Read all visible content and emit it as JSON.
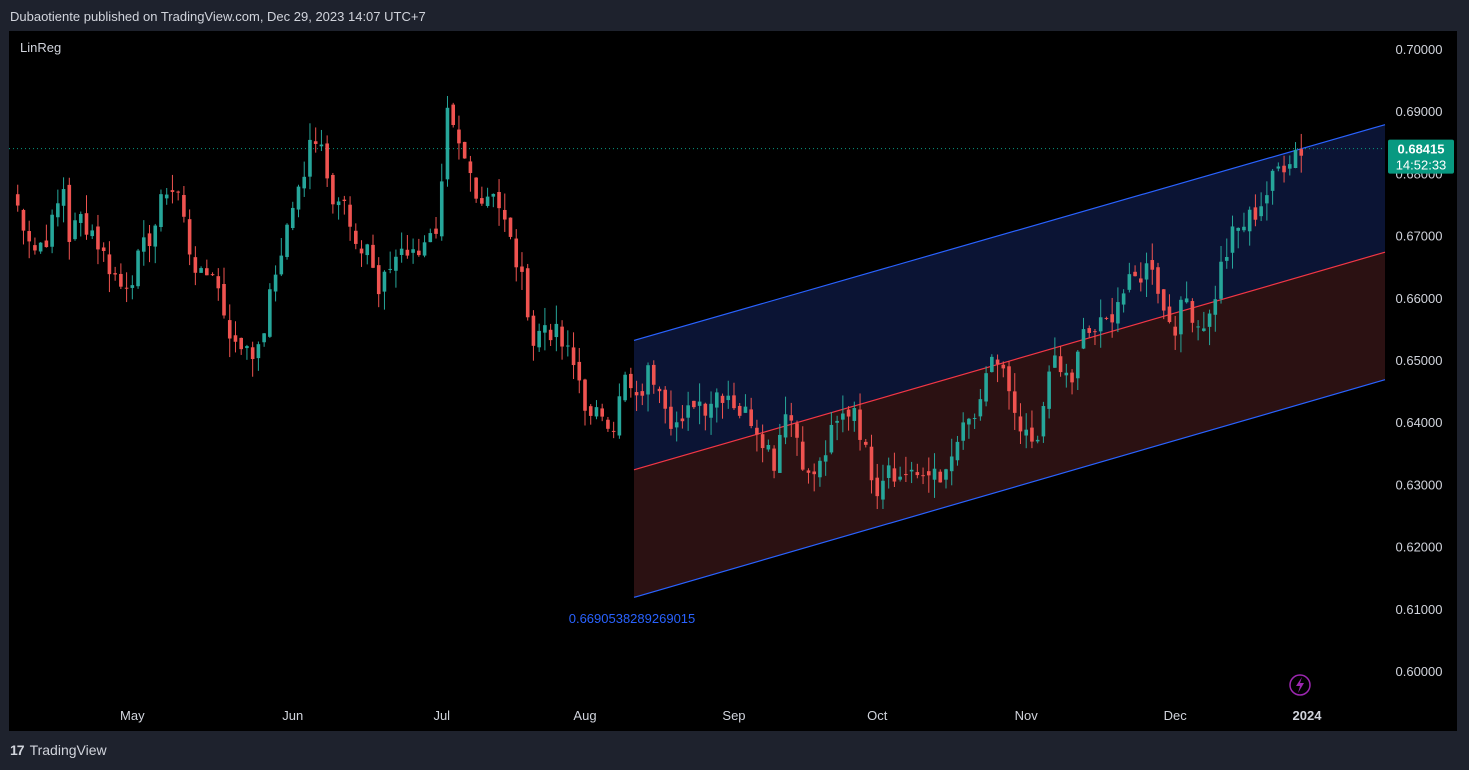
{
  "header": {
    "text": "Dubaotiente published on TradingView.com, Dec 29, 2023 14:07 UTC+7"
  },
  "indicator": {
    "name": "LinReg"
  },
  "footer": {
    "brand": "TradingView"
  },
  "colors": {
    "up": "#26a69a",
    "down": "#ef5350",
    "channel_edge": "#2962ff",
    "channel_mid": "#f23645",
    "upper_fill": "#0b1434",
    "lower_fill": "#2b1112",
    "price_badge": "#089981"
  },
  "chart_data": {
    "type": "candlestick",
    "ylim": [
      0.595,
      0.705
    ],
    "y_ticks": [
      "0.70000",
      "0.69000",
      "0.68000",
      "0.67000",
      "0.66000",
      "0.65000",
      "0.64000",
      "0.63000",
      "0.62000",
      "0.61000",
      "0.60000"
    ],
    "x_labels": [
      "May",
      "Jun",
      "Jul",
      "Aug",
      "Sep",
      "Oct",
      "Nov",
      "Dec",
      "2024"
    ],
    "last_price": "0.68415",
    "countdown": "14:52:33",
    "channel": {
      "upper": [
        0.6533,
        0.688
      ],
      "middle": [
        0.6325,
        0.6675
      ],
      "lower": [
        0.612,
        0.647
      ]
    },
    "channel_label": "0.6690538289269015",
    "price_path": [
      [
        0,
        0.677
      ],
      [
        4,
        0.668
      ],
      [
        6,
        0.67
      ],
      [
        7,
        0.672
      ],
      [
        9,
        0.678
      ],
      [
        10,
        0.67
      ],
      [
        12,
        0.673
      ],
      [
        14,
        0.671
      ],
      [
        16,
        0.667
      ],
      [
        19,
        0.662
      ],
      [
        21,
        0.664
      ],
      [
        23,
        0.668
      ],
      [
        25,
        0.672
      ],
      [
        27,
        0.678
      ],
      [
        29,
        0.677
      ],
      [
        31,
        0.668
      ],
      [
        33,
        0.663
      ],
      [
        35,
        0.665
      ],
      [
        37,
        0.658
      ],
      [
        39,
        0.652
      ],
      [
        41,
        0.653
      ],
      [
        43,
        0.651
      ],
      [
        45,
        0.66
      ],
      [
        47,
        0.668
      ],
      [
        49,
        0.675
      ],
      [
        51,
        0.679
      ],
      [
        52,
        0.687
      ],
      [
        54,
        0.685
      ],
      [
        56,
        0.677
      ],
      [
        58,
        0.675
      ],
      [
        60,
        0.667
      ],
      [
        62,
        0.669
      ],
      [
        64,
        0.661
      ],
      [
        66,
        0.665
      ],
      [
        68,
        0.669
      ],
      [
        70,
        0.667
      ],
      [
        72,
        0.67
      ],
      [
        74,
        0.669
      ],
      [
        75,
        0.677
      ],
      [
        76,
        0.689
      ],
      [
        78,
        0.684
      ],
      [
        80,
        0.68
      ],
      [
        82,
        0.676
      ],
      [
        84,
        0.678
      ],
      [
        86,
        0.672
      ],
      [
        88,
        0.666
      ],
      [
        90,
        0.659
      ],
      [
        91,
        0.653
      ],
      [
        93,
        0.656
      ],
      [
        95,
        0.654
      ],
      [
        97,
        0.651
      ],
      [
        99,
        0.647
      ],
      [
        101,
        0.64
      ],
      [
        103,
        0.642
      ],
      [
        105,
        0.64
      ],
      [
        107,
        0.647
      ],
      [
        109,
        0.643
      ],
      [
        111,
        0.648
      ],
      [
        113,
        0.647
      ],
      [
        115,
        0.641
      ],
      [
        117,
        0.639
      ],
      [
        119,
        0.644
      ],
      [
        121,
        0.643
      ],
      [
        123,
        0.645
      ],
      [
        125,
        0.645
      ],
      [
        127,
        0.642
      ],
      [
        129,
        0.641
      ],
      [
        131,
        0.638
      ],
      [
        133,
        0.634
      ],
      [
        135,
        0.643
      ],
      [
        137,
        0.638
      ],
      [
        139,
        0.631
      ],
      [
        141,
        0.633
      ],
      [
        143,
        0.638
      ],
      [
        145,
        0.641
      ],
      [
        147,
        0.643
      ],
      [
        149,
        0.635
      ],
      [
        151,
        0.63
      ],
      [
        153,
        0.634
      ],
      [
        155,
        0.631
      ],
      [
        157,
        0.633
      ],
      [
        159,
        0.63
      ],
      [
        161,
        0.633
      ],
      [
        163,
        0.631
      ],
      [
        165,
        0.637
      ],
      [
        167,
        0.64
      ],
      [
        169,
        0.642
      ],
      [
        171,
        0.651
      ],
      [
        173,
        0.648
      ],
      [
        175,
        0.64
      ],
      [
        177,
        0.637
      ],
      [
        179,
        0.636
      ],
      [
        181,
        0.65
      ],
      [
        183,
        0.648
      ],
      [
        185,
        0.647
      ],
      [
        187,
        0.654
      ],
      [
        189,
        0.655
      ],
      [
        191,
        0.656
      ],
      [
        193,
        0.66
      ],
      [
        195,
        0.662
      ],
      [
        197,
        0.664
      ],
      [
        199,
        0.666
      ],
      [
        201,
        0.658
      ],
      [
        203,
        0.656
      ],
      [
        205,
        0.66
      ],
      [
        207,
        0.656
      ],
      [
        209,
        0.657
      ],
      [
        211,
        0.665
      ],
      [
        213,
        0.67
      ],
      [
        215,
        0.672
      ],
      [
        217,
        0.674
      ],
      [
        219,
        0.677
      ],
      [
        221,
        0.681
      ],
      [
        223,
        0.683
      ],
      [
        224,
        0.684
      ],
      [
        225,
        0.684
      ]
    ]
  }
}
